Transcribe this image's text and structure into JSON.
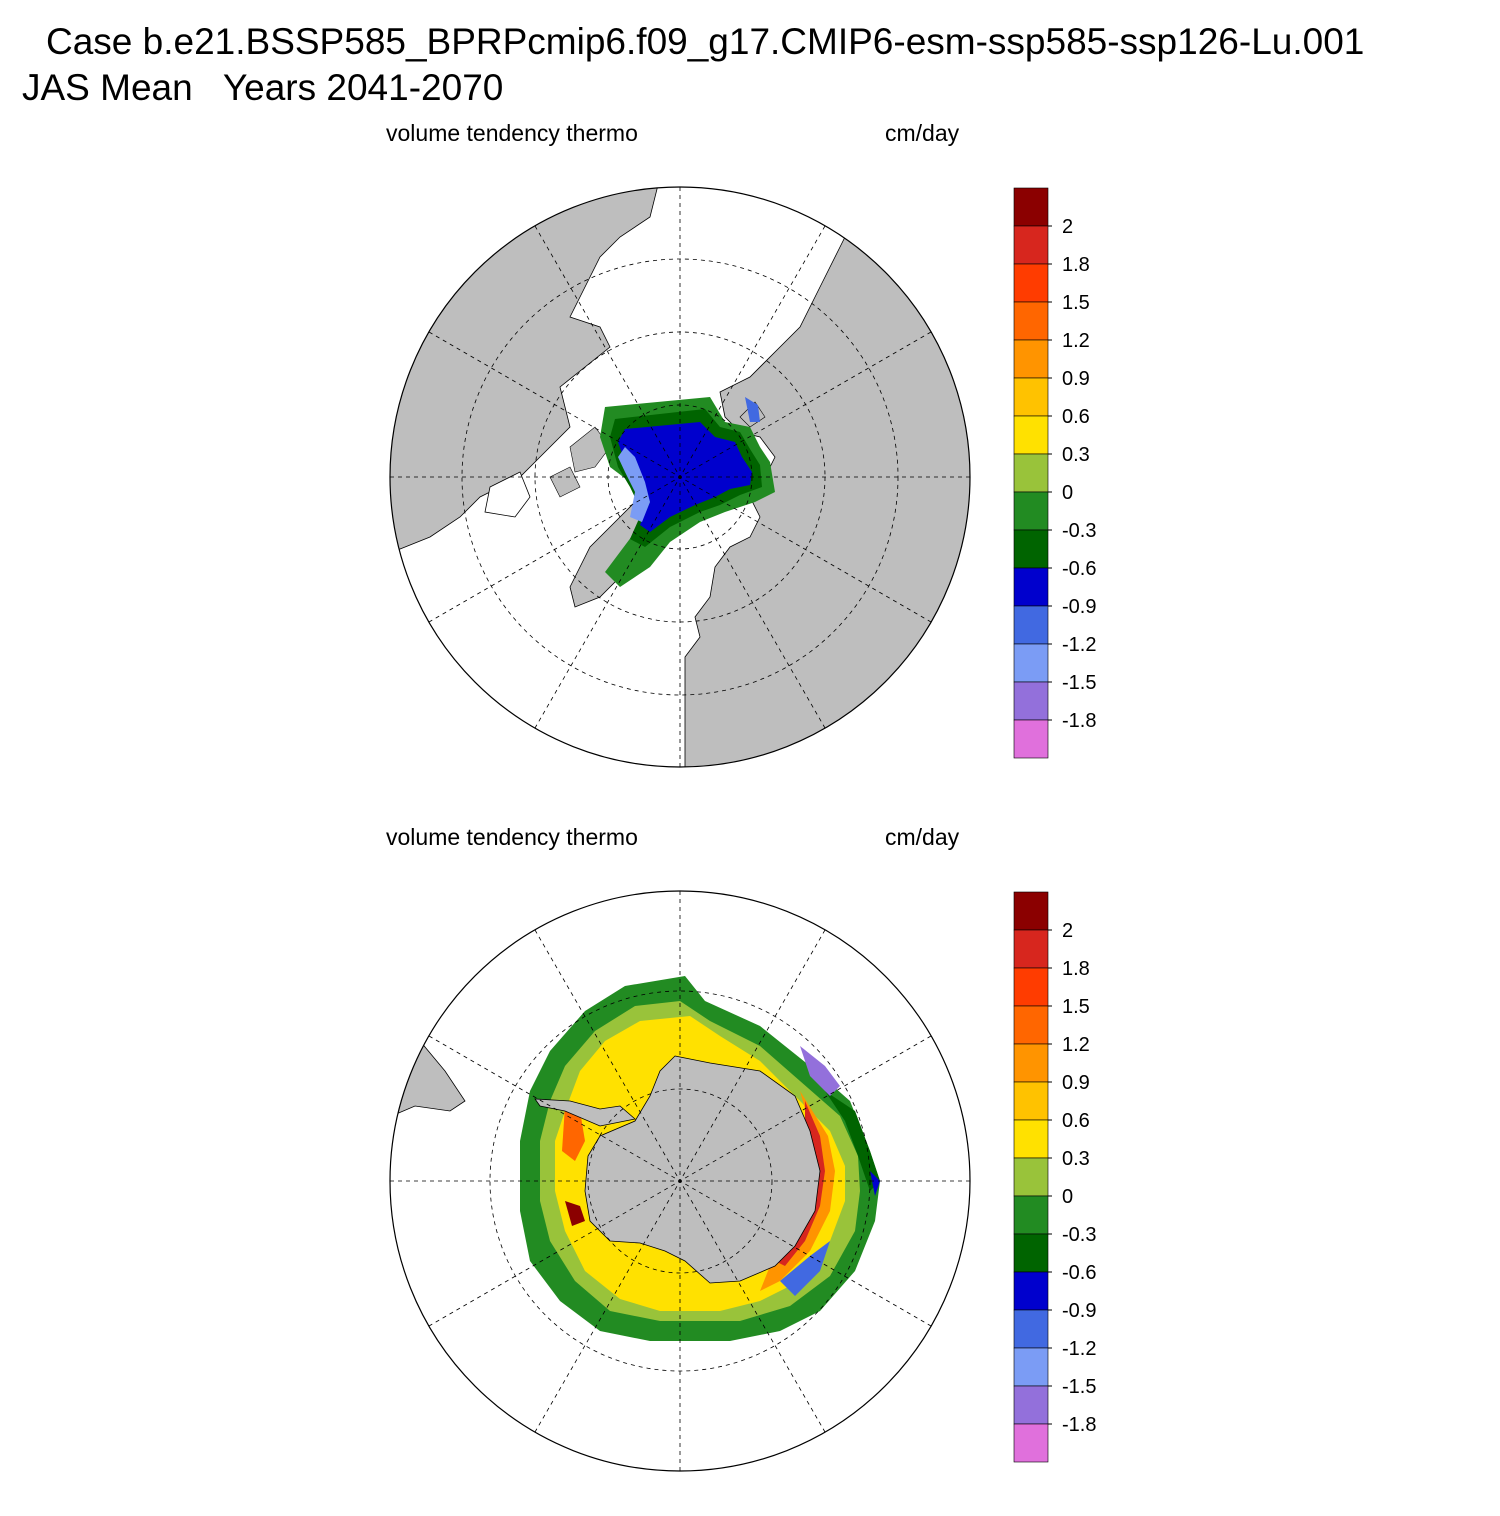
{
  "header": {
    "case_line": "Case b.e21.BSSP585_BPRPcmip6.f09_g17.CMIP6-esm-ssp585-ssp126-Lu.001",
    "season_line": "JAS Mean   Years 2041-2070"
  },
  "panels": [
    {
      "id": "north",
      "hemisphere": "north",
      "variable_label": "volume tendency thermo",
      "units_label": "cm/day"
    },
    {
      "id": "south",
      "hemisphere": "south",
      "variable_label": "volume tendency thermo",
      "units_label": "cm/day"
    }
  ],
  "colorbar": {
    "labels": [
      "2",
      "1.8",
      "1.5",
      "1.2",
      "0.9",
      "0.6",
      "0.3",
      "0",
      "-0.3",
      "-0.6",
      "-0.9",
      "-1.2",
      "-1.5",
      "-1.8"
    ],
    "colors": [
      "#8B0000",
      "#D7261E",
      "#FF3C00",
      "#FF6600",
      "#FF9400",
      "#FFC200",
      "#FFE100",
      "#99C33A",
      "#228B22",
      "#006400",
      "#0000CD",
      "#4169E1",
      "#7B9CF5",
      "#9370DB",
      "#E070DC"
    ]
  },
  "map_colors": {
    "land": "#BEBEBE",
    "ocean": "#FFFFFF",
    "grid": "#000000"
  }
}
